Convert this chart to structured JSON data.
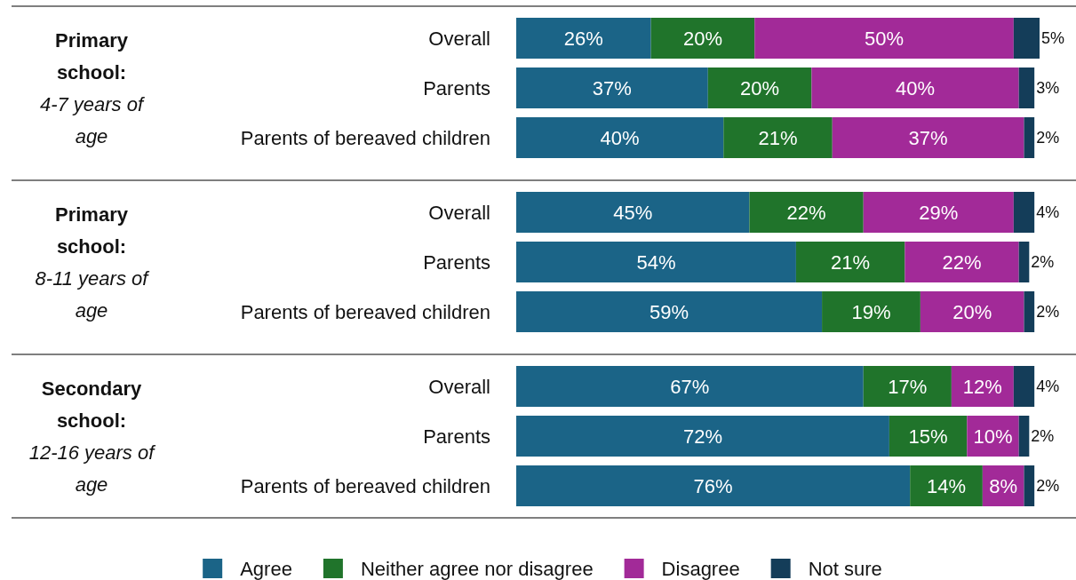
{
  "chart_data": {
    "type": "bar",
    "orientation": "horizontal",
    "stacked": true,
    "legend": "bottom",
    "categories": [
      "Overall",
      "Parents",
      "Parents of bereaved children",
      "Overall",
      "Parents",
      "Parents of bereaved children",
      "Overall",
      "Parents",
      "Parents of bereaved children"
    ],
    "annotations": [
      "Primary school: 4-7 years of age",
      "Primary school: 8-11 years of age",
      "Secondary school: 12-16 years of age"
    ],
    "series": [
      {
        "name": "Agree",
        "color": "#1b6487",
        "values": [
          26,
          37,
          40,
          45,
          54,
          59,
          67,
          72,
          76
        ],
        "value_labels": [
          "26%",
          "37%",
          "40%",
          "45%",
          "54%",
          "59%",
          "67%",
          "72%",
          "76%"
        ]
      },
      {
        "name": "Neither agree nor disagree",
        "color": "#20742b",
        "values": [
          20,
          20,
          21,
          22,
          21,
          19,
          17,
          15,
          14
        ],
        "value_labels": [
          "20%",
          "20%",
          "21%",
          "22%",
          "21%",
          "19%",
          "17%",
          "15%",
          "14%"
        ]
      },
      {
        "name": "Disagree",
        "color": "#a22a98",
        "values": [
          50,
          40,
          37,
          29,
          22,
          20,
          12,
          10,
          8
        ],
        "value_labels": [
          "50%",
          "40%",
          "37%",
          "29%",
          "22%",
          "20%",
          "12%",
          "10%",
          "8%"
        ]
      },
      {
        "name": "Not sure",
        "color": "#143d59",
        "values": [
          5,
          3,
          2,
          4,
          2,
          2,
          4,
          2,
          2
        ],
        "value_labels": [
          "5%",
          "3%",
          "2%",
          "4%",
          "2%",
          "2%",
          "4%",
          "2%",
          "2%"
        ]
      }
    ]
  }
}
